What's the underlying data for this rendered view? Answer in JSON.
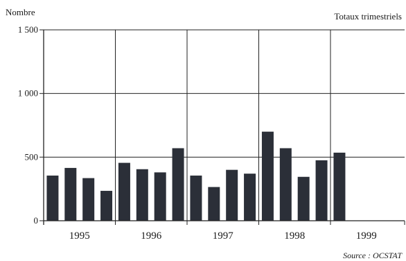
{
  "chart_data": {
    "type": "bar",
    "ylabel": "Nombre",
    "subtitle": "Totaux trimestriels",
    "source": "Source : OCSTAT",
    "years": [
      "1995",
      "1996",
      "1997",
      "1998",
      "1999"
    ],
    "quarters_per_year": 4,
    "values": [
      355,
      415,
      335,
      235,
      455,
      405,
      380,
      570,
      355,
      265,
      400,
      370,
      700,
      570,
      345,
      475,
      535
    ],
    "ylim": [
      0,
      1500
    ],
    "yticks": [
      0,
      500,
      1000,
      1500
    ],
    "ytick_labels": [
      "0",
      "500",
      "1 000",
      "1 500"
    ],
    "grid": true,
    "colors": {
      "bar": "#2b2f38",
      "grid": "#222222",
      "background": "#ffffff"
    }
  }
}
